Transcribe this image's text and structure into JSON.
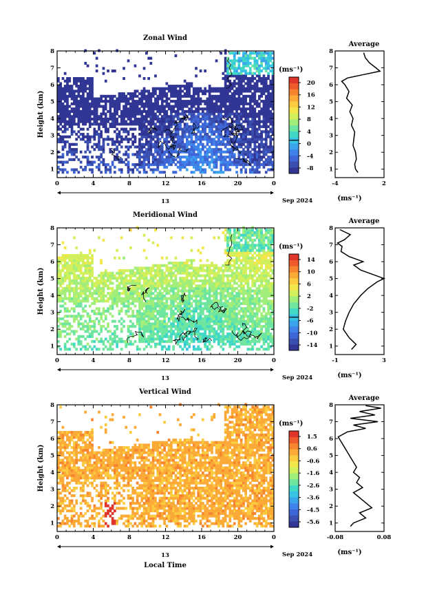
{
  "palette": [
    "#313695",
    "#3a4fb0",
    "#3f66d6",
    "#3e82ea",
    "#3aa3ec",
    "#36c3e4",
    "#42d8c6",
    "#6ee6a0",
    "#a2ee7a",
    "#d2ef5c",
    "#f2e64a",
    "#fbcb40",
    "#fbaa38",
    "#f7842f",
    "#ef5b2a",
    "#e0352a"
  ],
  "date_label": "Sep 2024",
  "panels": [
    {
      "title": "Zonal Wind",
      "x_ticks": [
        "0",
        "4",
        "8",
        "12",
        "16",
        "20",
        "0"
      ],
      "y_ticks": [
        "1",
        "2",
        "3",
        "4",
        "5",
        "6",
        "7",
        "8"
      ],
      "ylabel": "Height (km)",
      "day_label": "13",
      "unit": "(ms⁻¹)",
      "cbar_ticks": [
        "20",
        "16",
        "12",
        "8",
        "4",
        "0",
        "-4",
        "-8"
      ],
      "avg_title": "Average",
      "avg_x_ticks": [
        "-4",
        "2"
      ],
      "avg_unit": "(ms⁻¹)",
      "chart_data": {
        "type": "heatmap",
        "x_range_hours": [
          0,
          24
        ],
        "y_range_km": [
          0.5,
          8
        ],
        "color_range": [
          -8,
          22
        ],
        "zero_contour": true,
        "average_profile": {
          "xlim": [
            -4,
            2
          ],
          "height_km": [
            0.8,
            1.0,
            1.3,
            1.6,
            2.0,
            2.4,
            2.8,
            3.2,
            3.6,
            4.0,
            4.4,
            4.8,
            5.2,
            5.6,
            6.0,
            6.2,
            6.4,
            6.6,
            6.8,
            7.0,
            7.3,
            7.6,
            7.9
          ],
          "value": [
            -1.2,
            -1.5,
            -1.6,
            -1.4,
            -1.5,
            -1.8,
            -1.7,
            -1.6,
            -2.0,
            -1.8,
            -2.2,
            -1.9,
            -2.6,
            -2.3,
            -2.8,
            -3.2,
            -2.5,
            -0.5,
            1.5,
            1.0,
            0.2,
            -0.3,
            -0.5
          ]
        }
      },
      "xlabel": ""
    },
    {
      "title": "Meridional Wind",
      "x_ticks": [
        "0",
        "4",
        "8",
        "12",
        "16",
        "20",
        "0"
      ],
      "y_ticks": [
        "1",
        "2",
        "3",
        "4",
        "5",
        "6",
        "7",
        "8"
      ],
      "ylabel": "Height (km)",
      "day_label": "13",
      "unit": "(ms⁻¹)",
      "cbar_ticks": [
        "14",
        "10",
        "6",
        "2",
        "-2",
        "-6",
        "-10",
        "-14"
      ],
      "avg_title": "Average",
      "avg_x_ticks": [
        "-1",
        "3"
      ],
      "avg_unit": "(ms⁻¹)",
      "chart_data": {
        "type": "heatmap",
        "x_range_hours": [
          0,
          24
        ],
        "y_range_km": [
          0.5,
          8
        ],
        "color_range": [
          -16,
          16
        ],
        "zero_contour": true,
        "average_profile": {
          "xlim": [
            -1,
            3.2
          ],
          "height_km": [
            0.8,
            1.1,
            1.5,
            2.0,
            2.5,
            3.0,
            3.5,
            4.0,
            4.4,
            4.8,
            5.0,
            5.2,
            5.5,
            5.8,
            6.0,
            6.3,
            6.6,
            6.9,
            7.1,
            7.3,
            7.6,
            7.9
          ],
          "value": [
            0.4,
            0.8,
            0.2,
            -0.3,
            -0.1,
            0.2,
            0.6,
            1.2,
            1.8,
            2.6,
            3.2,
            2.4,
            1.2,
            0.6,
            1.4,
            0.2,
            -0.5,
            -0.4,
            -0.8,
            -0.2,
            0.3,
            -0.6
          ]
        }
      },
      "xlabel": ""
    },
    {
      "title": "Vertical Wind",
      "x_ticks": [
        "0",
        "4",
        "8",
        "12",
        "16",
        "20",
        "0"
      ],
      "y_ticks": [
        "1",
        "2",
        "3",
        "4",
        "5",
        "6",
        "7",
        "8"
      ],
      "ylabel": "Height (km)",
      "day_label": "13",
      "unit": "(ms⁻¹)",
      "cbar_ticks": [
        "1.5",
        "0.6",
        "-0.6",
        "-1.6",
        "-2.6",
        "-3.6",
        "-4.5",
        "-5.6"
      ],
      "avg_title": "Average",
      "avg_x_ticks": [
        "-0.08",
        "0.08"
      ],
      "avg_unit": "(ms⁻¹)",
      "chart_data": {
        "type": "heatmap",
        "x_range_hours": [
          0,
          24
        ],
        "y_range_km": [
          0.5,
          8
        ],
        "color_range": [
          -6,
          2
        ],
        "zero_contour": false,
        "average_profile": {
          "xlim": [
            -0.08,
            0.08
          ],
          "height_km": [
            0.8,
            1.0,
            1.3,
            1.6,
            1.9,
            2.2,
            2.5,
            2.8,
            3.1,
            3.4,
            3.7,
            4.0,
            4.3,
            4.6,
            4.9,
            5.2,
            5.5,
            5.8,
            6.1,
            6.4,
            6.6,
            6.8,
            7.0,
            7.2,
            7.4,
            7.6,
            7.8,
            7.95
          ],
          "value": [
            -0.03,
            -0.02,
            0.02,
            0.0,
            0.04,
            0.02,
            0.0,
            -0.02,
            0.01,
            -0.01,
            0.0,
            -0.02,
            -0.01,
            -0.02,
            -0.03,
            -0.04,
            -0.05,
            -0.06,
            -0.07,
            -0.04,
            0.02,
            -0.02,
            0.06,
            -0.03,
            0.05,
            0.0,
            0.07,
            0.02
          ]
        }
      },
      "xlabel": "Local Time"
    }
  ]
}
